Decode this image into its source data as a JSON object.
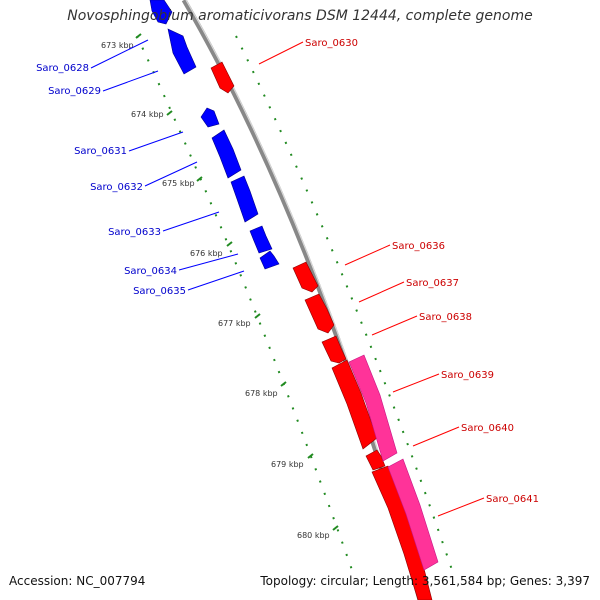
{
  "title": "Novosphingobium aromaticivorans DSM 12444, complete genome",
  "footer": {
    "accession": "Accession: NC_007794",
    "summary": "Topology: circular; Length: 3,561,584 bp; Genes: 3,397"
  },
  "colors": {
    "reverse_strand": "#0000ff",
    "forward_strand": "#ff0000",
    "feature_pink": "#ff3399",
    "backbone": "#888888",
    "ticks": "#228b22"
  },
  "scale_ticks": [
    "673 kbp",
    "674 kbp",
    "675 kbp",
    "676 kbp",
    "677 kbp",
    "678 kbp",
    "679 kbp",
    "680 kbp"
  ],
  "genes": {
    "reverse": [
      "Saro_0628",
      "Saro_0629",
      "Saro_0631",
      "Saro_0632",
      "Saro_0633",
      "Saro_0634",
      "Saro_0635"
    ],
    "forward": [
      "Saro_0630",
      "Saro_0636",
      "Saro_0637",
      "Saro_0638",
      "Saro_0639",
      "Saro_0640",
      "Saro_0641"
    ]
  }
}
